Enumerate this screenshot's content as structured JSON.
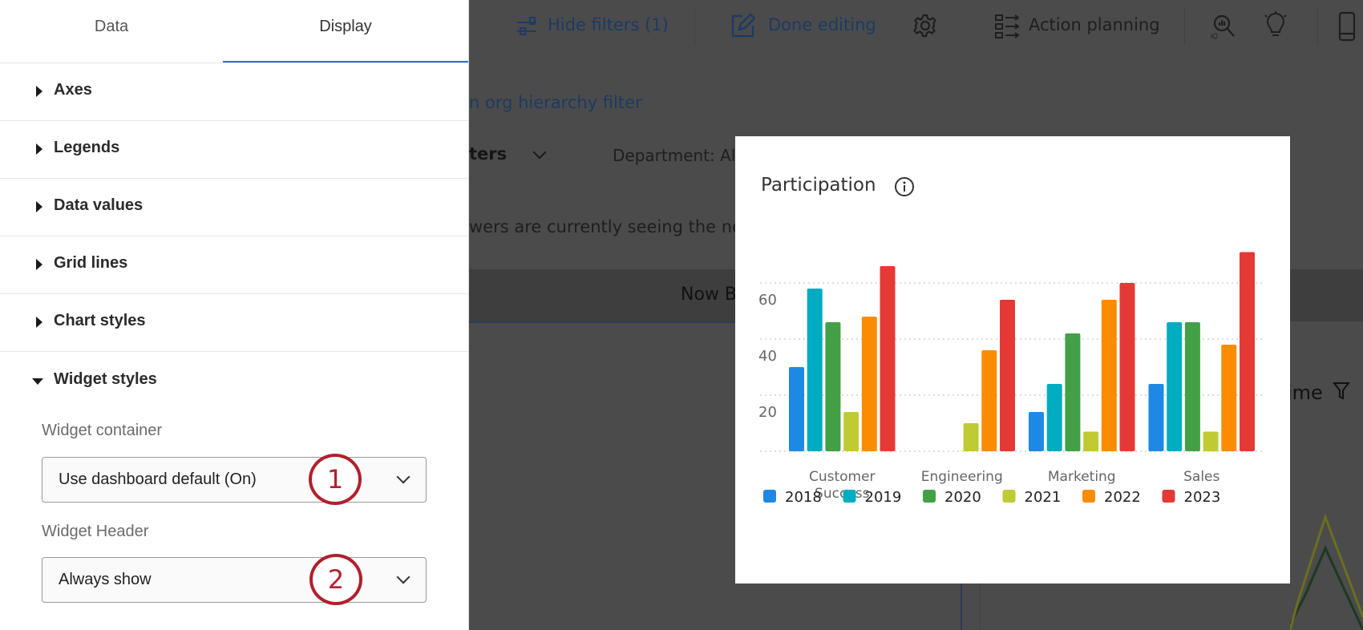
{
  "toolbar": {
    "hide_filters": "Hide filters (1)",
    "done_editing": "Done editing",
    "action_planning": "Action planning",
    "icons": [
      "filter-sliders-icon",
      "pencil-edit-icon",
      "gear-icon",
      "action-planning-icon",
      "iq-search-icon",
      "lightbulb-icon",
      "mobile-phone-icon"
    ]
  },
  "background": {
    "org_filter_link": "n org hierarchy filter",
    "filters_label": "ters",
    "department_filter": "Department: Al",
    "notice": "wers are currently seeing the new",
    "banner": "Now B",
    "widget_title_fragment": "ime"
  },
  "panel": {
    "tabs": [
      {
        "label": "Data",
        "active": false
      },
      {
        "label": "Display",
        "active": true
      }
    ],
    "sections": [
      {
        "label": "Axes",
        "expanded": false
      },
      {
        "label": "Legends",
        "expanded": false
      },
      {
        "label": "Data values",
        "expanded": false
      },
      {
        "label": "Grid lines",
        "expanded": false
      },
      {
        "label": "Chart styles",
        "expanded": false
      },
      {
        "label": "Widget styles",
        "expanded": true
      }
    ],
    "widget_container_label": "Widget container",
    "widget_container_value": "Use dashboard default (On)",
    "widget_header_label": "Widget Header",
    "widget_header_value": "Always show",
    "callouts": [
      "1",
      "2"
    ],
    "accent": "#1a73e8",
    "callout_color": "#b21f2d"
  },
  "widget": {
    "title": "Participation"
  },
  "chart_data": {
    "type": "bar",
    "title": "Participation",
    "categories": [
      "Customer Success",
      "Engineering",
      "Marketing",
      "Sales"
    ],
    "category_lines": [
      [
        "Customer",
        "Success"
      ],
      [
        "Engineering"
      ],
      [
        "Marketing"
      ],
      [
        "Sales"
      ]
    ],
    "series": [
      {
        "name": "2018",
        "color": "#1e88e5",
        "values": [
          30,
          null,
          14,
          24
        ]
      },
      {
        "name": "2019",
        "color": "#00acc1",
        "values": [
          58,
          null,
          24,
          46
        ]
      },
      {
        "name": "2020",
        "color": "#43a047",
        "values": [
          46,
          null,
          42,
          46
        ]
      },
      {
        "name": "2021",
        "color": "#c0ca33",
        "values": [
          14,
          10,
          7,
          7
        ]
      },
      {
        "name": "2022",
        "color": "#fb8c00",
        "values": [
          48,
          36,
          54,
          38
        ]
      },
      {
        "name": "2023",
        "color": "#e53935",
        "values": [
          66,
          54,
          60,
          71
        ]
      }
    ],
    "yticks": [
      20,
      40,
      60
    ],
    "ylim": [
      0,
      80
    ],
    "grid": true,
    "legend": "bottom"
  }
}
